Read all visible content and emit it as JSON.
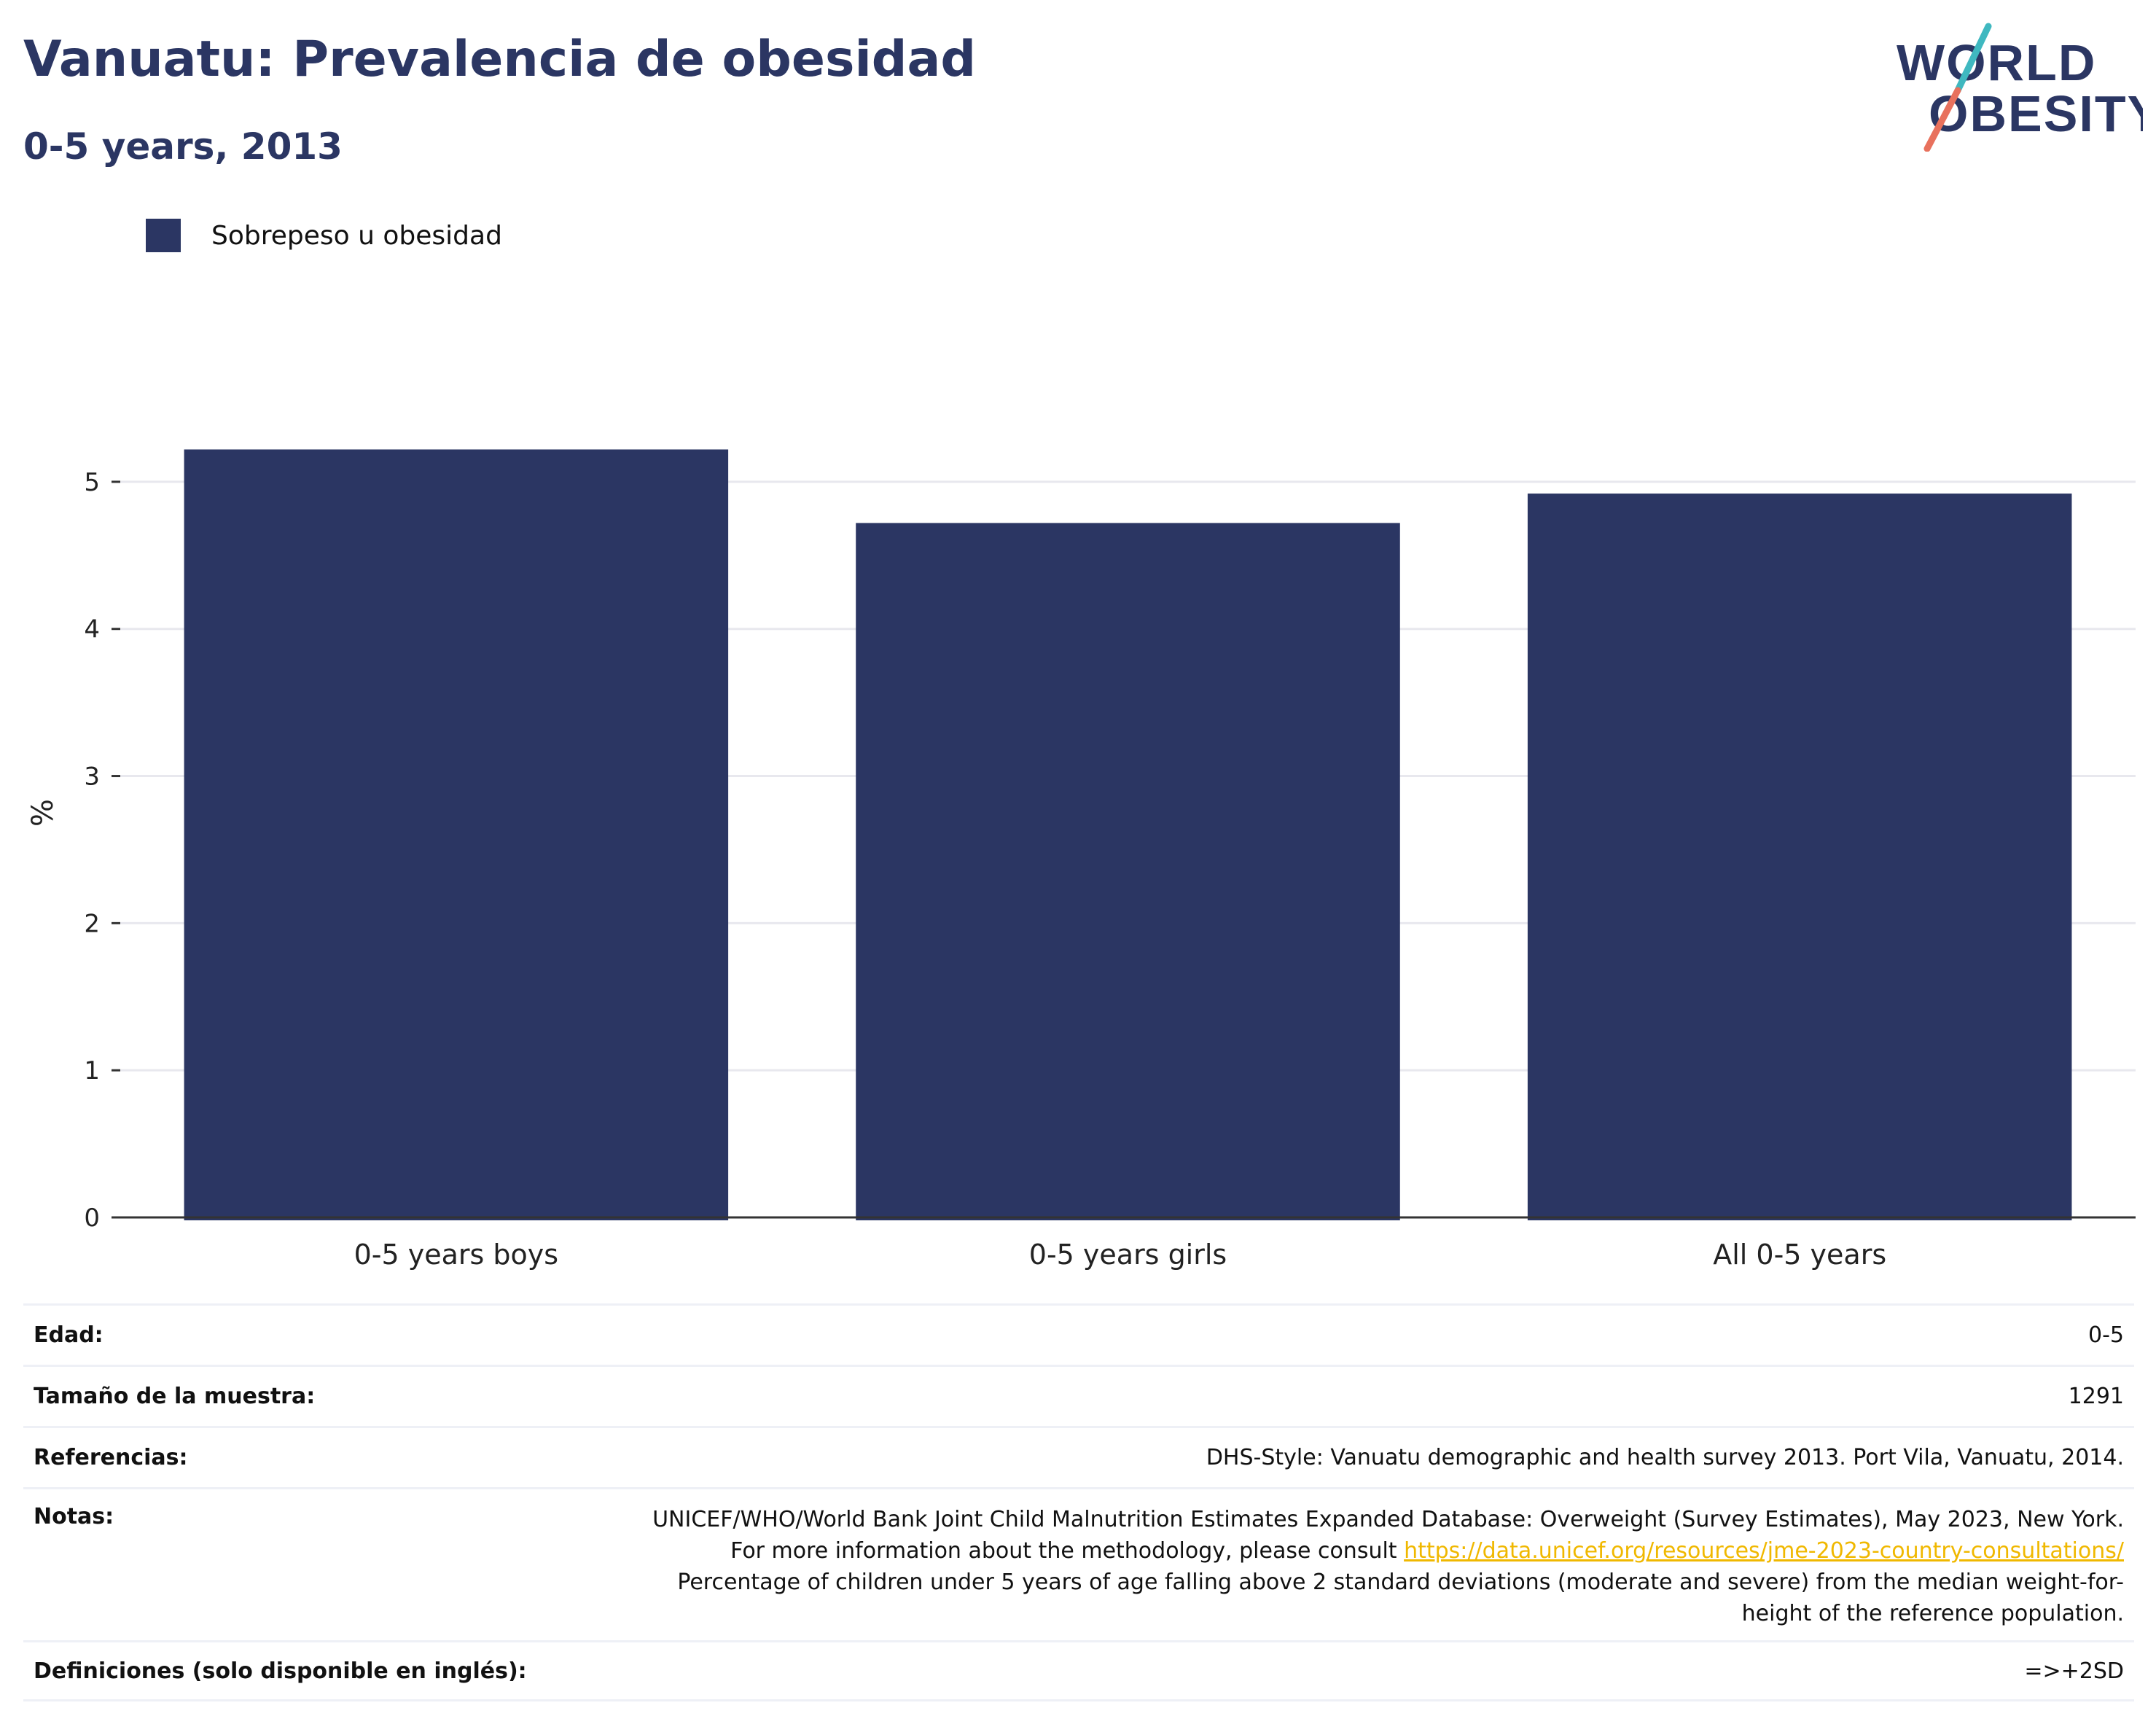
{
  "header": {
    "title": "Vanuatu: Prevalencia de obesidad",
    "subtitle": "0-5 years, 2013"
  },
  "logo": {
    "line1": "WORLD",
    "line2": "OBESITY",
    "colors": {
      "text": "#2b3663",
      "slash_top": "#3fb8c0",
      "slash_bottom": "#e8715d"
    }
  },
  "colors": {
    "bar": "#2b3663",
    "title": "#2b3663",
    "link": "#f0b800"
  },
  "chart_data": {
    "type": "bar",
    "categories": [
      "0-5 years boys",
      "0-5 years girls",
      "All 0-5 years"
    ],
    "series": [
      {
        "name": "Sobrepeso u obesidad",
        "values": [
          5.22,
          4.72,
          4.92
        ]
      }
    ],
    "ylabel": "%",
    "xlabel": "",
    "ylim": [
      0,
      5.5
    ],
    "yticks": [
      0,
      1,
      2,
      3,
      4,
      5
    ],
    "grid": true,
    "legend": "top-left"
  },
  "info": {
    "age": {
      "label": "Edad:",
      "value": "0-5"
    },
    "sample": {
      "label": "Tamaño de la muestra:",
      "value": "1291"
    },
    "references": {
      "label": "Referencias:",
      "value": "DHS-Style: Vanuatu demographic and health survey 2013. Port Vila, Vanuatu, 2014."
    },
    "notes": {
      "label": "Notas:",
      "text_before": "UNICEF/WHO/World Bank Joint Child Malnutrition Estimates Expanded Database: Overweight (Survey Estimates), May 2023, New York. For more information about the methodology, please consult ",
      "link": "https://data.unicef.org/resources/jme-2023-country-consultations/",
      "text_after": " Percentage of children under 5 years of age falling above 2 standard deviations (moderate and severe) from the median weight-for-height of the reference population."
    },
    "definitions": {
      "label": "Definiciones (solo disponible en inglés):",
      "value": "=>+2SD"
    }
  }
}
